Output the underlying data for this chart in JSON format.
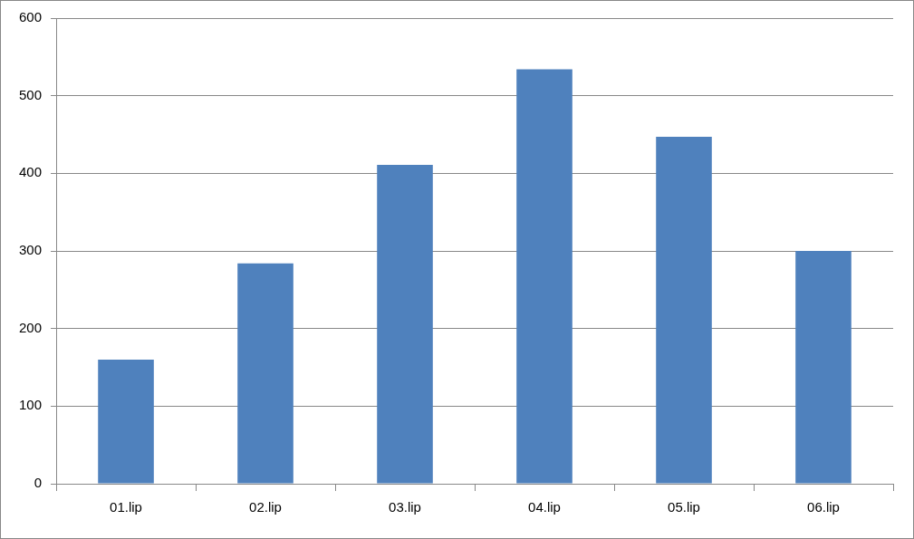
{
  "chart_data": {
    "type": "bar",
    "categories": [
      "01.lip",
      "02.lip",
      "03.lip",
      "04.lip",
      "05.lip",
      "06.lip"
    ],
    "values": [
      160,
      284,
      411,
      534,
      447,
      300
    ],
    "color": "#4f81bd",
    "ylim": [
      0,
      600
    ],
    "yticks": [
      0,
      100,
      200,
      300,
      400,
      500,
      600
    ],
    "grid": "y"
  }
}
